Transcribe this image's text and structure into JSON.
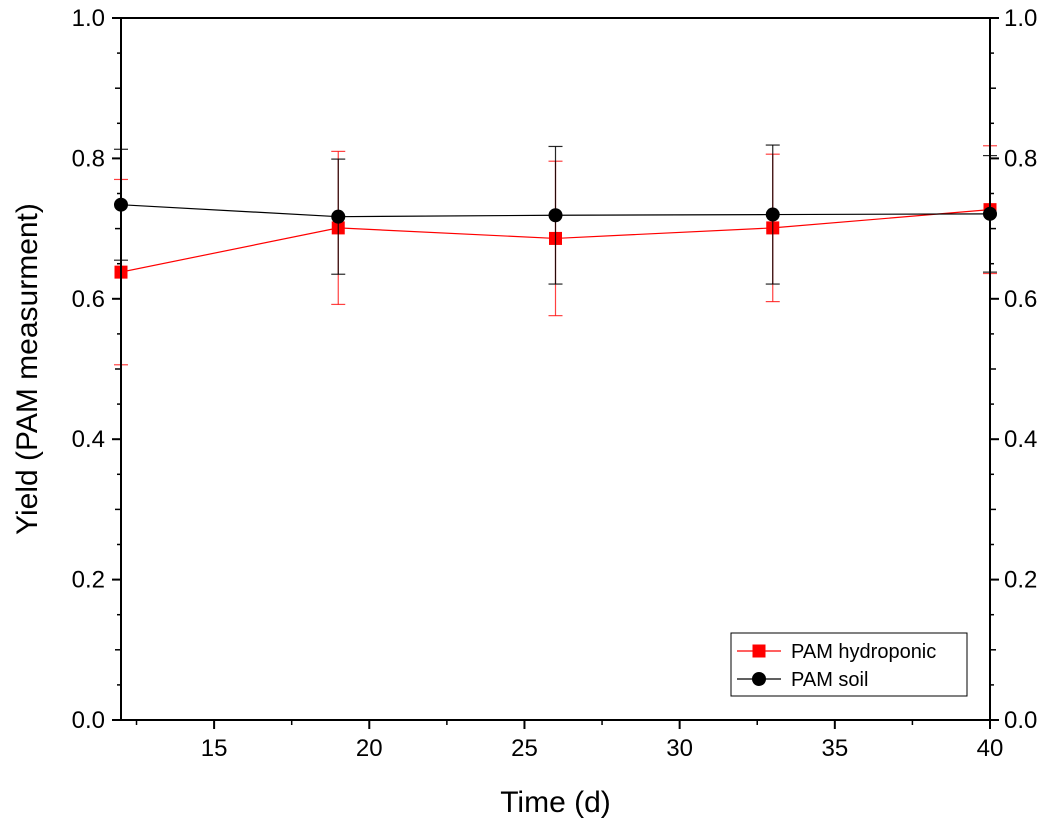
{
  "chart_data": {
    "type": "line",
    "title": "",
    "xlabel": "Time (d)",
    "ylabel": "Yield (PAM measurment)",
    "xlim": [
      12,
      40
    ],
    "ylim": [
      0.0,
      1.0
    ],
    "x_ticks": [
      15,
      20,
      25,
      30,
      35,
      40
    ],
    "x_tick_labels": [
      "15",
      "20",
      "25",
      "30",
      "35",
      "40"
    ],
    "y_ticks": [
      0.0,
      0.2,
      0.4,
      0.6,
      0.8,
      1.0
    ],
    "y_tick_labels": [
      "0.0",
      "0.2",
      "0.4",
      "0.6",
      "0.8",
      "1.0"
    ],
    "right_axis_mirrored": true,
    "grid": false,
    "legend_position": "bottom-right",
    "series": [
      {
        "name": "PAM hydroponic",
        "color": "#ff0000",
        "marker": "square",
        "x": [
          12,
          19,
          26,
          33,
          40
        ],
        "y": [
          0.638,
          0.701,
          0.686,
          0.701,
          0.727
        ],
        "error": [
          0.132,
          0.109,
          0.11,
          0.105,
          0.091
        ]
      },
      {
        "name": "PAM soil",
        "color": "#000000",
        "marker": "circle",
        "x": [
          12,
          19,
          26,
          33,
          40
        ],
        "y": [
          0.734,
          0.717,
          0.719,
          0.72,
          0.721
        ],
        "error": [
          0.079,
          0.082,
          0.098,
          0.099,
          0.083
        ]
      }
    ]
  }
}
